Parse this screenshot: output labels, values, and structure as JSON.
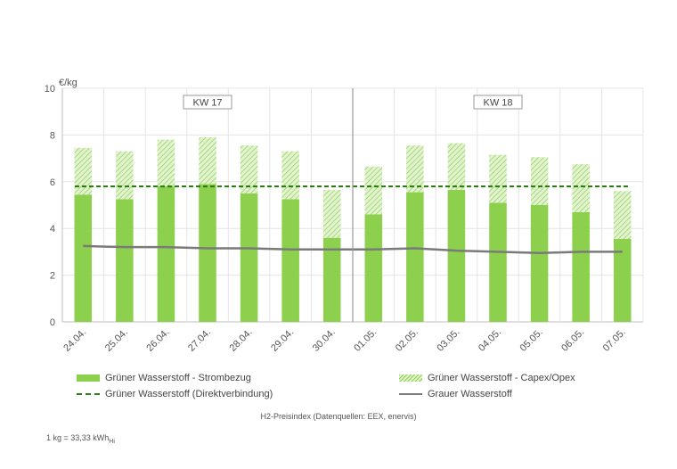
{
  "chart_data": {
    "type": "bar",
    "title": "",
    "unit_label": "€/kg",
    "ylim": [
      0,
      10
    ],
    "yticks": [
      0,
      2,
      4,
      6,
      8,
      10
    ],
    "categories": [
      "24.04.",
      "25.04.",
      "26.04.",
      "27.04.",
      "28.04.",
      "29.04.",
      "30.04.",
      "01.05.",
      "02.05.",
      "03.05.",
      "04.05.",
      "05.05.",
      "06.05.",
      "07.05."
    ],
    "series": [
      {
        "name": "Grüner Wasserstoff - Strombezug",
        "kind": "stacked-bar",
        "values": [
          5.45,
          5.25,
          5.8,
          5.9,
          5.5,
          5.25,
          3.6,
          4.6,
          5.55,
          5.65,
          5.1,
          5.0,
          4.7,
          3.55
        ]
      },
      {
        "name": "Grüner Wasserstoff - Capex/Opex",
        "kind": "stacked-bar",
        "values": [
          2.0,
          2.05,
          2.0,
          2.0,
          2.05,
          2.05,
          2.05,
          2.05,
          2.0,
          2.0,
          2.05,
          2.05,
          2.05,
          2.05
        ]
      },
      {
        "name": "Grüner Wasserstoff (Direktverbindung)",
        "kind": "dashed-line",
        "values": [
          5.8,
          5.8,
          5.8,
          5.8,
          5.8,
          5.8,
          5.8,
          5.8,
          5.8,
          5.8,
          5.8,
          5.8,
          5.8,
          5.8
        ]
      },
      {
        "name": "Grauer Wasserstoff",
        "kind": "line",
        "values": [
          3.25,
          3.2,
          3.2,
          3.15,
          3.15,
          3.1,
          3.1,
          3.1,
          3.15,
          3.05,
          3.0,
          2.95,
          3.0,
          3.0
        ]
      }
    ],
    "week_labels": [
      "KW 17",
      "KW 18"
    ],
    "week_divider_after": "30.04.",
    "grid": true,
    "legend_position": "bottom"
  },
  "colors": {
    "green": "#8cd04d",
    "hatch_bg": "#e3f3d2",
    "dark_green": "#2e7d16",
    "grey": "#7a7a7a",
    "grid": "#e4e4e4",
    "axis": "#bfbfbf"
  },
  "footer": {
    "source": "H2-Preisindex (Datenquellen: EEX, enervis)",
    "conversion_main": "1 kg = 33,33 kWh",
    "conversion_sub": "Hi"
  }
}
